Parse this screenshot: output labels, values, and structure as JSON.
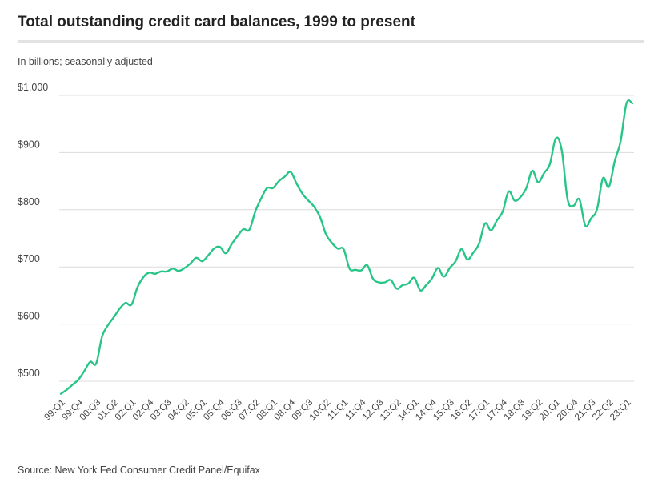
{
  "chart_data": {
    "type": "line",
    "title": "Total outstanding credit card balances, 1999 to present",
    "subtitle": "In billions; seasonally adjusted",
    "source": "Source: New York Fed Consumer Credit Panel/Equifax",
    "ylabel": "In billions; seasonally adjusted",
    "xlabel": "",
    "ylim": [
      450,
      1000
    ],
    "yticks": [
      500,
      600,
      700,
      800,
      900,
      1000
    ],
    "ytick_labels": [
      "$500",
      "$600",
      "$700",
      "$800",
      "$900",
      "$1,000"
    ],
    "grid": true,
    "line_color": "#28c588",
    "x_tick_labels": [
      "99:Q1",
      "99:Q4",
      "00:Q3",
      "01:Q2",
      "02:Q1",
      "02:Q4",
      "03:Q3",
      "04:Q2",
      "05:Q1",
      "05:Q4",
      "06:Q3",
      "07:Q2",
      "08:Q1",
      "08:Q4",
      "09:Q3",
      "10:Q2",
      "11:Q1",
      "11:Q4",
      "12:Q3",
      "13:Q2",
      "14:Q1",
      "14:Q4",
      "15:Q3",
      "16:Q2",
      "17:Q1",
      "17:Q4",
      "18:Q3",
      "19:Q2",
      "20:Q1",
      "20:Q4",
      "21:Q3",
      "22:Q2",
      "23:Q1"
    ],
    "series": [
      {
        "name": "Credit card balances",
        "values": [
          478,
          485,
          494,
          503,
          518,
          534,
          531,
          578,
          598,
          612,
          627,
          637,
          634,
          664,
          682,
          690,
          688,
          692,
          692,
          697,
          693,
          698,
          706,
          716,
          710,
          720,
          732,
          735,
          724,
          740,
          754,
          766,
          765,
          797,
          820,
          838,
          838,
          850,
          858,
          866,
          846,
          828,
          816,
          805,
          787,
          757,
          742,
          732,
          731,
          697,
          695,
          694,
          703,
          679,
          673,
          673,
          677,
          662,
          668,
          671,
          681,
          659,
          668,
          680,
          698,
          683,
          698,
          710,
          731,
          713,
          725,
          741,
          776,
          764,
          781,
          797,
          832,
          816,
          822,
          838,
          868,
          848,
          864,
          880,
          925,
          904,
          818,
          807,
          818,
          772,
          785,
          801,
          855,
          840,
          885,
          920,
          986,
          986
        ]
      }
    ]
  }
}
